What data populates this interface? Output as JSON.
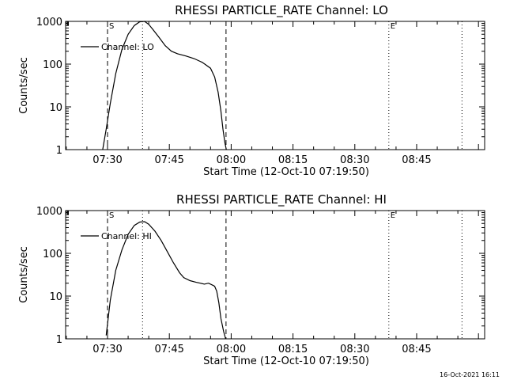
{
  "footer": {
    "timestamp": "16-Oct-2021 16:11"
  },
  "chart_data": [
    {
      "type": "line",
      "title": "RHESSI PARTICLE_RATE Channel: LO",
      "xlabel": "Start Time (12-Oct-10 07:19:50)",
      "ylabel": "Counts/sec",
      "y_scale": "log",
      "ylim": [
        1,
        1000
      ],
      "xlim": [
        "07:19:50",
        "09:01:30"
      ],
      "x_ticks": [
        "07:30",
        "07:45",
        "08:00",
        "08:15",
        "08:30",
        "08:45"
      ],
      "y_ticks": [
        "1",
        "10",
        "100",
        "1000"
      ],
      "legend": {
        "position": "top-left",
        "entries": [
          "Channel: LO"
        ]
      },
      "markers": [
        {
          "label": "S",
          "x": "07:30:00",
          "style": "dashed"
        },
        {
          "label": "",
          "x": "07:58:45",
          "style": "dashed"
        },
        {
          "label": "",
          "x": "07:38:30",
          "style": "dotted"
        },
        {
          "label": "E",
          "x": "08:38:15",
          "style": "dotted"
        },
        {
          "label": "",
          "x": "08:56:00",
          "style": "dotted"
        }
      ],
      "series": [
        {
          "name": "Channel: LO",
          "x": [
            "07:28:50",
            "07:29:40",
            "07:30:40",
            "07:32:00",
            "07:33:30",
            "07:35:00",
            "07:36:30",
            "07:37:50",
            "07:39:00",
            "07:40:00",
            "07:41:00",
            "07:42:30",
            "07:44:00",
            "07:45:30",
            "07:47:00",
            "07:49:00",
            "07:51:00",
            "07:53:00",
            "07:55:00",
            "07:56:00",
            "07:56:50",
            "07:57:30",
            "07:58:00",
            "07:58:30",
            "07:58:50"
          ],
          "values": [
            1,
            3,
            12,
            60,
            220,
            500,
            800,
            980,
            1000,
            850,
            650,
            420,
            270,
            200,
            175,
            155,
            135,
            110,
            80,
            50,
            22,
            8,
            3,
            1.4,
            1
          ]
        }
      ]
    },
    {
      "type": "line",
      "title": "RHESSI PARTICLE_RATE Channel: HI",
      "xlabel": "Start Time (12-Oct-10 07:19:50)",
      "ylabel": "Counts/sec",
      "y_scale": "log",
      "ylim": [
        1,
        1000
      ],
      "xlim": [
        "07:19:50",
        "09:01:30"
      ],
      "x_ticks": [
        "07:30",
        "07:45",
        "08:00",
        "08:15",
        "08:30",
        "08:45"
      ],
      "y_ticks": [
        "1",
        "10",
        "100",
        "1000"
      ],
      "legend": {
        "position": "top-left",
        "entries": [
          "Channel: HI"
        ]
      },
      "markers": [
        {
          "label": "S",
          "x": "07:30:00",
          "style": "dashed"
        },
        {
          "label": "",
          "x": "07:58:45",
          "style": "dashed"
        },
        {
          "label": "",
          "x": "07:38:30",
          "style": "dotted"
        },
        {
          "label": "E",
          "x": "08:38:15",
          "style": "dotted"
        },
        {
          "label": "",
          "x": "08:56:00",
          "style": "dotted"
        }
      ],
      "series": [
        {
          "name": "Channel: HI",
          "x": [
            "07:29:40",
            "07:30:40",
            "07:32:00",
            "07:33:30",
            "07:35:00",
            "07:36:30",
            "07:37:50",
            "07:39:00",
            "07:40:00",
            "07:41:30",
            "07:43:00",
            "07:44:30",
            "07:46:00",
            "07:47:30",
            "07:48:30",
            "07:50:00",
            "07:51:30",
            "07:52:30",
            "07:53:30",
            "07:54:30",
            "07:55:30",
            "07:56:00",
            "07:56:30",
            "07:57:00",
            "07:57:30",
            "07:58:10",
            "07:58:40"
          ],
          "values": [
            1.2,
            8,
            40,
            120,
            280,
            450,
            540,
            550,
            480,
            330,
            200,
            110,
            60,
            35,
            27,
            23,
            21,
            20,
            19,
            20,
            18,
            17,
            13,
            7,
            3,
            1.5,
            1
          ]
        }
      ]
    }
  ]
}
